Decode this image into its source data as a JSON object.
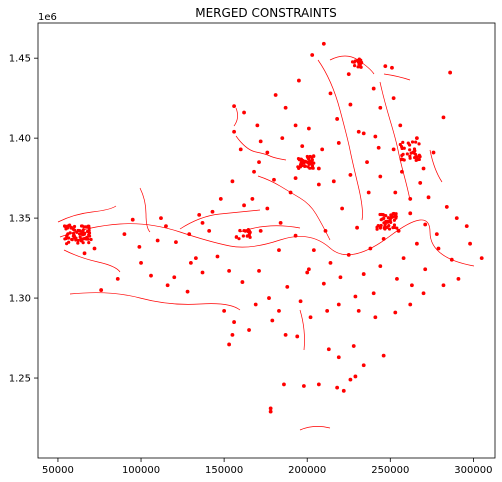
{
  "chart_data": {
    "type": "scatter",
    "title": "MERGED CONSTRAINTS",
    "xlabel": "",
    "ylabel": "",
    "y_offset_label": "1e6",
    "xlim": [
      38000,
      313000
    ],
    "ylim": [
      1200000,
      1472000
    ],
    "x_ticks": [
      50000,
      100000,
      150000,
      200000,
      250000,
      300000
    ],
    "x_tick_labels": [
      "50000",
      "100000",
      "150000",
      "200000",
      "250000",
      "300000"
    ],
    "y_ticks": [
      1250000,
      1300000,
      1350000,
      1400000,
      1450000
    ],
    "y_tick_labels": [
      "1.25",
      "1.30",
      "1.35",
      "1.40",
      "1.45"
    ],
    "grid": false,
    "legend": "none",
    "marker_color": "#ff0000",
    "clusters": [
      {
        "x": 62000,
        "y": 1340000,
        "spread_x": 8000,
        "spread_y": 6000,
        "count": 70
      },
      {
        "x": 199000,
        "y": 1385000,
        "spread_x": 5000,
        "spread_y": 4000,
        "count": 45
      },
      {
        "x": 248000,
        "y": 1348000,
        "spread_x": 6000,
        "spread_y": 5000,
        "count": 50
      },
      {
        "x": 230000,
        "y": 1447000,
        "spread_x": 3000,
        "spread_y": 3000,
        "count": 20
      },
      {
        "x": 262000,
        "y": 1392000,
        "spread_x": 6000,
        "spread_y": 6000,
        "count": 35
      },
      {
        "x": 162000,
        "y": 1340000,
        "spread_x": 5000,
        "spread_y": 3000,
        "count": 20
      }
    ],
    "points": [
      [
        210000,
        1459000
      ],
      [
        203000,
        1452000
      ],
      [
        225000,
        1440000
      ],
      [
        247000,
        1445000
      ],
      [
        251000,
        1444000
      ],
      [
        286000,
        1441000
      ],
      [
        195000,
        1436000
      ],
      [
        214000,
        1428000
      ],
      [
        181000,
        1427000
      ],
      [
        156000,
        1420000
      ],
      [
        162000,
        1416000
      ],
      [
        187000,
        1419000
      ],
      [
        193000,
        1408000
      ],
      [
        201000,
        1406000
      ],
      [
        282000,
        1413000
      ],
      [
        231000,
        1404000
      ],
      [
        241000,
        1401000
      ],
      [
        256000,
        1408000
      ],
      [
        266000,
        1400000
      ],
      [
        276000,
        1391000
      ],
      [
        219000,
        1397000
      ],
      [
        209000,
        1393000
      ],
      [
        172000,
        1398000
      ],
      [
        176000,
        1391000
      ],
      [
        168000,
        1379000
      ],
      [
        180000,
        1374000
      ],
      [
        155000,
        1373000
      ],
      [
        190000,
        1366000
      ],
      [
        207000,
        1371000
      ],
      [
        216000,
        1373000
      ],
      [
        226000,
        1377000
      ],
      [
        236000,
        1385000
      ],
      [
        257000,
        1379000
      ],
      [
        268000,
        1372000
      ],
      [
        273000,
        1363000
      ],
      [
        284000,
        1357000
      ],
      [
        290000,
        1350000
      ],
      [
        296000,
        1345000
      ],
      [
        278000,
        1340000
      ],
      [
        266000,
        1334000
      ],
      [
        258000,
        1325000
      ],
      [
        271000,
        1318000
      ],
      [
        282000,
        1308000
      ],
      [
        291000,
        1312000
      ],
      [
        305000,
        1325000
      ],
      [
        244000,
        1320000
      ],
      [
        234000,
        1315000
      ],
      [
        225000,
        1327000
      ],
      [
        214000,
        1322000
      ],
      [
        204000,
        1330000
      ],
      [
        193000,
        1339000
      ],
      [
        184000,
        1347000
      ],
      [
        176000,
        1356000
      ],
      [
        167000,
        1362000
      ],
      [
        148000,
        1362000
      ],
      [
        143000,
        1354000
      ],
      [
        137000,
        1347000
      ],
      [
        129000,
        1340000
      ],
      [
        121000,
        1335000
      ],
      [
        115000,
        1345000
      ],
      [
        110000,
        1336000
      ],
      [
        99000,
        1332000
      ],
      [
        100000,
        1322000
      ],
      [
        106000,
        1314000
      ],
      [
        116000,
        1308000
      ],
      [
        128000,
        1304000
      ],
      [
        137000,
        1316000
      ],
      [
        146000,
        1326000
      ],
      [
        153000,
        1317000
      ],
      [
        161000,
        1310000
      ],
      [
        171000,
        1317000
      ],
      [
        177000,
        1300000
      ],
      [
        188000,
        1307000
      ],
      [
        196000,
        1298000
      ],
      [
        183000,
        1292000
      ],
      [
        169000,
        1296000
      ],
      [
        156000,
        1285000
      ],
      [
        150000,
        1292000
      ],
      [
        165000,
        1280000
      ],
      [
        155000,
        1277000
      ],
      [
        153000,
        1271000
      ],
      [
        179000,
        1286000
      ],
      [
        187000,
        1277000
      ],
      [
        194000,
        1276000
      ],
      [
        202000,
        1288000
      ],
      [
        212000,
        1292000
      ],
      [
        219000,
        1296000
      ],
      [
        231000,
        1292000
      ],
      [
        241000,
        1288000
      ],
      [
        253000,
        1291000
      ],
      [
        262000,
        1296000
      ],
      [
        270000,
        1303000
      ],
      [
        213000,
        1268000
      ],
      [
        219000,
        1263000
      ],
      [
        228000,
        1270000
      ],
      [
        229000,
        1251000
      ],
      [
        226000,
        1249000
      ],
      [
        218000,
        1244000
      ],
      [
        207000,
        1246000
      ],
      [
        198000,
        1245000
      ],
      [
        186000,
        1246000
      ],
      [
        222000,
        1242000
      ],
      [
        178000,
        1231000
      ],
      [
        178000,
        1229000
      ],
      [
        234000,
        1258000
      ],
      [
        246000,
        1264000
      ],
      [
        76000,
        1305000
      ],
      [
        86000,
        1312000
      ],
      [
        112000,
        1350000
      ],
      [
        135000,
        1352000
      ],
      [
        141000,
        1342000
      ],
      [
        130000,
        1322000
      ],
      [
        95000,
        1349000
      ],
      [
        90000,
        1340000
      ],
      [
        66000,
        1328000
      ],
      [
        72000,
        1331000
      ],
      [
        58000,
        1344000
      ],
      [
        120000,
        1313000
      ],
      [
        133000,
        1325000
      ],
      [
        162000,
        1358000
      ],
      [
        172000,
        1342000
      ],
      [
        183000,
        1330000
      ],
      [
        201000,
        1318000
      ],
      [
        211000,
        1342000
      ],
      [
        221000,
        1356000
      ],
      [
        230000,
        1344000
      ],
      [
        237000,
        1366000
      ],
      [
        244000,
        1376000
      ],
      [
        253000,
        1366000
      ],
      [
        262000,
        1353000
      ],
      [
        271000,
        1346000
      ],
      [
        279000,
        1331000
      ],
      [
        287000,
        1324000
      ],
      [
        298000,
        1334000
      ],
      [
        254000,
        1312000
      ],
      [
        263000,
        1308000
      ],
      [
        240000,
        1303000
      ],
      [
        229000,
        1301000
      ],
      [
        220000,
        1313000
      ],
      [
        210000,
        1309000
      ],
      [
        200000,
        1316000
      ],
      [
        238000,
        1331000
      ],
      [
        246000,
        1337000
      ],
      [
        255000,
        1342000
      ],
      [
        262000,
        1362000
      ],
      [
        270000,
        1381000
      ],
      [
        243000,
        1394000
      ],
      [
        234000,
        1403000
      ],
      [
        244000,
        1419000
      ],
      [
        252000,
        1425000
      ],
      [
        240000,
        1431000
      ],
      [
        226000,
        1421000
      ],
      [
        218000,
        1412000
      ],
      [
        207000,
        1381000
      ],
      [
        193000,
        1375000
      ],
      [
        171000,
        1385000
      ],
      [
        160000,
        1393000
      ],
      [
        156000,
        1404000
      ],
      [
        170000,
        1408000
      ],
      [
        185000,
        1400000
      ],
      [
        197000,
        1395000
      ],
      [
        252000,
        1393000
      ]
    ]
  }
}
